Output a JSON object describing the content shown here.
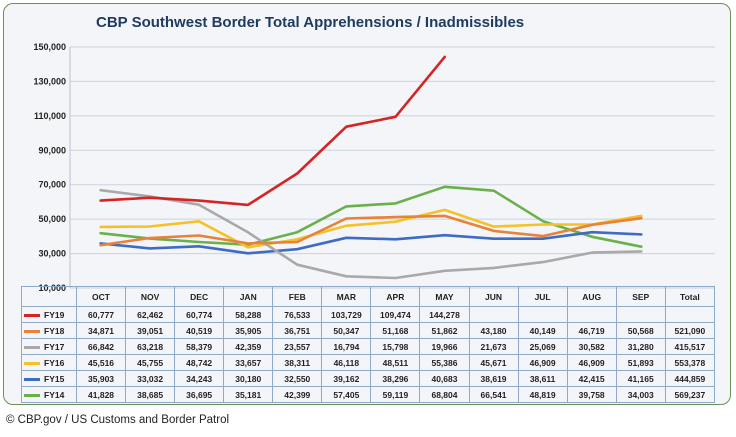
{
  "title": "CBP Southwest Border Total Apprehensions / Inadmissibles",
  "caption": "©  CBP.gov / US Customs and Border Patrol",
  "table_headers": [
    "OCT",
    "NOV",
    "DEC",
    "JAN",
    "FEB",
    "MAR",
    "APR",
    "MAY",
    "JUN",
    "JUL",
    "AUG",
    "SEP",
    "Total"
  ],
  "chart_data": {
    "type": "line",
    "title": "CBP Southwest Border Total Apprehensions / Inadmissibles",
    "categories": [
      "OCT",
      "NOV",
      "DEC",
      "JAN",
      "FEB",
      "MAR",
      "APR",
      "MAY",
      "JUN",
      "JUL",
      "AUG",
      "SEP"
    ],
    "ylim": [
      10000,
      150000
    ],
    "yticks": [
      10000,
      30000,
      50000,
      70000,
      90000,
      110000,
      130000,
      150000
    ],
    "ytick_labels": [
      "10,000",
      "30,000",
      "50,000",
      "70,000",
      "90,000",
      "110,000",
      "130,000",
      "150,000"
    ],
    "grid": true,
    "legend": "data-table",
    "series": [
      {
        "name": "FY19",
        "color": "#d62424",
        "values": [
          60777,
          62462,
          60774,
          58288,
          76533,
          103729,
          109474,
          144278,
          null,
          null,
          null,
          null
        ],
        "labels": [
          "60,777",
          "62,462",
          "60,774",
          "58,288",
          "76,533",
          "103,729",
          "109,474",
          "144,278",
          "",
          "",
          "",
          ""
        ],
        "total": ""
      },
      {
        "name": "FY18",
        "color": "#e8823a",
        "values": [
          34871,
          39051,
          40519,
          35905,
          36751,
          50347,
          51168,
          51862,
          43180,
          40149,
          46719,
          50568
        ],
        "labels": [
          "34,871",
          "39,051",
          "40,519",
          "35,905",
          "36,751",
          "50,347",
          "51,168",
          "51,862",
          "43,180",
          "40,149",
          "46,719",
          "50,568"
        ],
        "total": "521,090"
      },
      {
        "name": "FY17",
        "color": "#a9a9a9",
        "values": [
          66842,
          63218,
          58379,
          42359,
          23557,
          16794,
          15798,
          19966,
          21673,
          25069,
          30582,
          31280
        ],
        "labels": [
          "66,842",
          "63,218",
          "58,379",
          "42,359",
          "23,557",
          "16,794",
          "15,798",
          "19,966",
          "21,673",
          "25,069",
          "30,582",
          "31,280"
        ],
        "total": "415,517"
      },
      {
        "name": "FY16",
        "color": "#f5c226",
        "values": [
          45516,
          45755,
          48742,
          33657,
          38311,
          46118,
          48511,
          55386,
          45671,
          46909,
          46909,
          51893
        ],
        "labels": [
          "45,516",
          "45,755",
          "48,742",
          "33,657",
          "38,311",
          "46,118",
          "48,511",
          "55,386",
          "45,671",
          "46,909",
          "46,909",
          "51,893"
        ],
        "total": "553,378"
      },
      {
        "name": "FY15",
        "color": "#3e6bc4",
        "values": [
          35903,
          33032,
          34243,
          30180,
          32550,
          39162,
          38296,
          40683,
          38619,
          38611,
          42415,
          41165
        ],
        "labels": [
          "35,903",
          "33,032",
          "34,243",
          "30,180",
          "32,550",
          "39,162",
          "38,296",
          "40,683",
          "38,619",
          "38,611",
          "42,415",
          "41,165"
        ],
        "total": "444,859"
      },
      {
        "name": "FY14",
        "color": "#6ab04c",
        "values": [
          41828,
          38685,
          36695,
          35181,
          42399,
          57405,
          59119,
          68804,
          66541,
          48819,
          39758,
          34003
        ],
        "labels": [
          "41,828",
          "38,685",
          "36,695",
          "35,181",
          "42,399",
          "57,405",
          "59,119",
          "68,804",
          "66,541",
          "48,819",
          "39,758",
          "34,003"
        ],
        "total": "569,237"
      }
    ]
  }
}
